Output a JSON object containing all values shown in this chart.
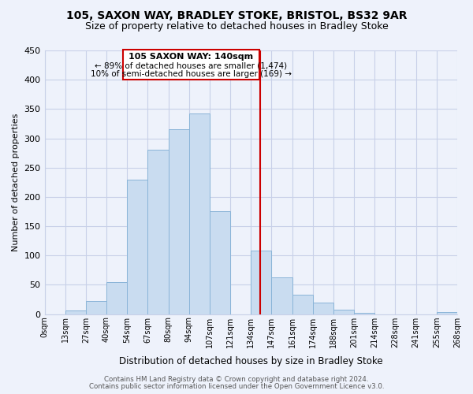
{
  "title1": "105, SAXON WAY, BRADLEY STOKE, BRISTOL, BS32 9AR",
  "title2": "Size of property relative to detached houses in Bradley Stoke",
  "xlabel": "Distribution of detached houses by size in Bradley Stoke",
  "ylabel": "Number of detached properties",
  "bin_labels": [
    "0sqm",
    "13sqm",
    "27sqm",
    "40sqm",
    "54sqm",
    "67sqm",
    "80sqm",
    "94sqm",
    "107sqm",
    "121sqm",
    "134sqm",
    "147sqm",
    "161sqm",
    "174sqm",
    "188sqm",
    "201sqm",
    "214sqm",
    "228sqm",
    "241sqm",
    "255sqm",
    "268sqm"
  ],
  "bin_values": [
    0,
    6,
    22,
    54,
    230,
    280,
    316,
    342,
    176,
    0,
    108,
    63,
    33,
    19,
    7,
    2,
    0,
    0,
    0,
    3
  ],
  "bar_color": "#c9dcf0",
  "bar_edge_color": "#8ab4d8",
  "vline_x": 10.45,
  "vline_color": "#cc0000",
  "annotation_title": "105 SAXON WAY: 140sqm",
  "annotation_line1": "← 89% of detached houses are smaller (1,474)",
  "annotation_line2": "10% of semi-detached houses are larger (169) →",
  "annotation_box_color": "#ffffff",
  "annotation_box_edge": "#cc0000",
  "ylim": [
    0,
    450
  ],
  "yticks": [
    0,
    50,
    100,
    150,
    200,
    250,
    300,
    350,
    400,
    450
  ],
  "footer1": "Contains HM Land Registry data © Crown copyright and database right 2024.",
  "footer2": "Contains public sector information licensed under the Open Government Licence v3.0.",
  "background_color": "#eef2fb",
  "grid_color": "#c8d0e8",
  "title1_fontsize": 10,
  "title2_fontsize": 9
}
